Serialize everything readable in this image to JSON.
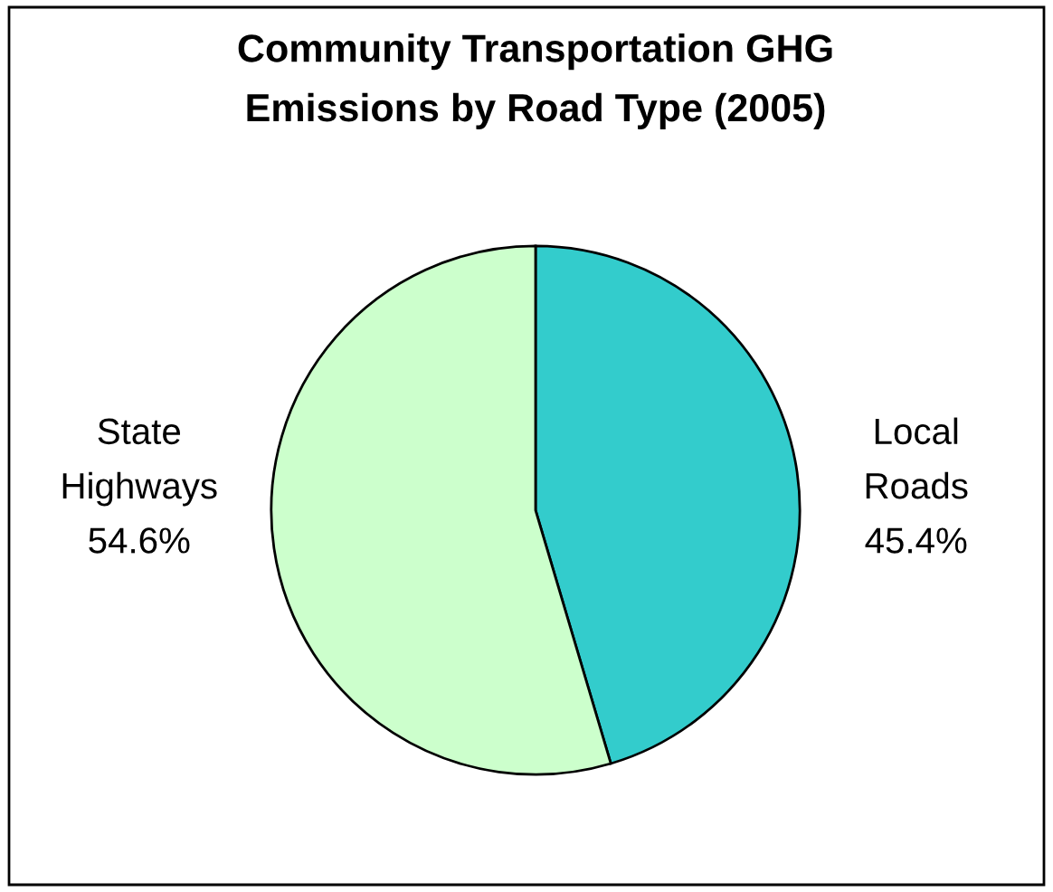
{
  "chart_data": {
    "type": "pie",
    "title": "Community Transportation GHG\nEmissions by Road Type (2005)",
    "categories": [
      "Local Roads",
      "State Highways"
    ],
    "values": [
      45.4,
      54.6
    ],
    "value_labels": [
      "45.4%",
      "54.6%"
    ],
    "colors": [
      "#33cccc",
      "#ccffcc"
    ],
    "legend": false
  }
}
